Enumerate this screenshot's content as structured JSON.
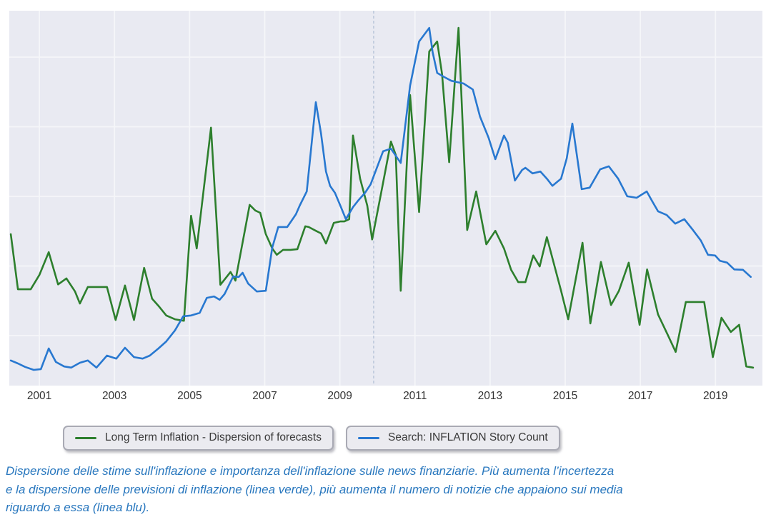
{
  "chart_data": {
    "type": "line",
    "title": "",
    "xlabel": "",
    "ylabel": "",
    "grid": true,
    "legend_position": "bottom",
    "x_axis": {
      "range": [
        2000.2,
        2020.25
      ],
      "ticks": [
        2001,
        2003,
        2005,
        2007,
        2009,
        2011,
        2013,
        2015,
        2017,
        2019
      ]
    },
    "y_axis": {
      "range": [
        0,
        100
      ],
      "labels_visible": false
    },
    "event_marker_x": 2009.9,
    "colors": {
      "plot_background": "#e9eaf2",
      "gridline": "#f5f6f9",
      "event_marker": "#b7c4d9",
      "tick_label": "#333333",
      "green_series": "#2d7f2d",
      "blue_series": "#2878d0",
      "caption_text": "#2877be"
    },
    "series": [
      {
        "name": "Long Term Inflation - Dispersion of forecasts",
        "color": "#2d7f2d",
        "points": [
          [
            2000.24,
            40.4
          ],
          [
            2000.43,
            25.7
          ],
          [
            2000.77,
            25.7
          ],
          [
            2001.0,
            29.5
          ],
          [
            2001.25,
            35.6
          ],
          [
            2001.5,
            27.0
          ],
          [
            2001.72,
            28.6
          ],
          [
            2001.95,
            25.1
          ],
          [
            2002.08,
            21.9
          ],
          [
            2002.29,
            26.3
          ],
          [
            2002.52,
            26.3
          ],
          [
            2002.8,
            26.3
          ],
          [
            2003.03,
            17.5
          ],
          [
            2003.28,
            26.7
          ],
          [
            2003.52,
            17.5
          ],
          [
            2003.79,
            31.4
          ],
          [
            2004.0,
            23.2
          ],
          [
            2004.17,
            21.3
          ],
          [
            2004.38,
            18.7
          ],
          [
            2004.61,
            17.7
          ],
          [
            2004.85,
            17.3
          ],
          [
            2005.04,
            45.3
          ],
          [
            2005.19,
            36.6
          ],
          [
            2005.57,
            68.8
          ],
          [
            2005.82,
            26.9
          ],
          [
            2006.09,
            30.3
          ],
          [
            2006.22,
            28.0
          ],
          [
            2006.6,
            48.2
          ],
          [
            2006.75,
            46.7
          ],
          [
            2006.88,
            46.1
          ],
          [
            2007.03,
            40.4
          ],
          [
            2007.2,
            36.6
          ],
          [
            2007.32,
            34.9
          ],
          [
            2007.49,
            36.2
          ],
          [
            2007.68,
            36.2
          ],
          [
            2007.87,
            36.4
          ],
          [
            2008.08,
            42.5
          ],
          [
            2008.17,
            42.3
          ],
          [
            2008.36,
            41.3
          ],
          [
            2008.5,
            40.6
          ],
          [
            2008.63,
            37.9
          ],
          [
            2008.84,
            43.4
          ],
          [
            2009.01,
            43.8
          ],
          [
            2009.12,
            43.8
          ],
          [
            2009.25,
            44.4
          ],
          [
            2009.35,
            66.7
          ],
          [
            2009.54,
            55.2
          ],
          [
            2009.73,
            48.0
          ],
          [
            2009.86,
            39.0
          ],
          [
            2010.13,
            53.0
          ],
          [
            2010.36,
            65.1
          ],
          [
            2010.49,
            61.5
          ],
          [
            2010.62,
            25.3
          ],
          [
            2010.87,
            77.5
          ],
          [
            2011.11,
            46.3
          ],
          [
            2011.38,
            89.1
          ],
          [
            2011.59,
            91.8
          ],
          [
            2011.72,
            83.2
          ],
          [
            2011.91,
            59.6
          ],
          [
            2012.16,
            95.4
          ],
          [
            2012.39,
            41.5
          ],
          [
            2012.63,
            51.8
          ],
          [
            2012.9,
            37.7
          ],
          [
            2013.14,
            41.3
          ],
          [
            2013.37,
            36.6
          ],
          [
            2013.56,
            30.9
          ],
          [
            2013.75,
            27.6
          ],
          [
            2013.94,
            27.6
          ],
          [
            2014.15,
            34.7
          ],
          [
            2014.32,
            31.8
          ],
          [
            2014.51,
            39.6
          ],
          [
            2014.89,
            25.3
          ],
          [
            2015.08,
            17.7
          ],
          [
            2015.46,
            38.1
          ],
          [
            2015.67,
            16.6
          ],
          [
            2015.95,
            33.0
          ],
          [
            2016.22,
            21.5
          ],
          [
            2016.43,
            25.3
          ],
          [
            2016.69,
            32.8
          ],
          [
            2016.98,
            16.2
          ],
          [
            2017.18,
            31.0
          ],
          [
            2017.47,
            19.0
          ],
          [
            2017.74,
            13.3
          ],
          [
            2017.94,
            9.0
          ],
          [
            2018.21,
            22.3
          ],
          [
            2018.46,
            22.3
          ],
          [
            2018.7,
            22.3
          ],
          [
            2018.93,
            7.6
          ],
          [
            2019.16,
            18.1
          ],
          [
            2019.41,
            14.3
          ],
          [
            2019.63,
            16.2
          ],
          [
            2019.82,
            5.1
          ],
          [
            2020.0,
            4.8
          ]
        ]
      },
      {
        "name": "Search: INFLATION Story Count",
        "color": "#2878d0",
        "points": [
          [
            2000.24,
            6.7
          ],
          [
            2000.43,
            5.9
          ],
          [
            2000.62,
            5.0
          ],
          [
            2000.85,
            4.2
          ],
          [
            2001.04,
            4.4
          ],
          [
            2001.25,
            9.9
          ],
          [
            2001.44,
            6.3
          ],
          [
            2001.66,
            5.1
          ],
          [
            2001.85,
            4.8
          ],
          [
            2002.08,
            6.1
          ],
          [
            2002.29,
            6.7
          ],
          [
            2002.52,
            4.8
          ],
          [
            2002.8,
            8.0
          ],
          [
            2003.05,
            7.2
          ],
          [
            2003.28,
            10.1
          ],
          [
            2003.52,
            7.6
          ],
          [
            2003.75,
            7.2
          ],
          [
            2003.94,
            8.0
          ],
          [
            2004.17,
            9.9
          ],
          [
            2004.38,
            11.8
          ],
          [
            2004.61,
            14.7
          ],
          [
            2004.83,
            18.5
          ],
          [
            2005.04,
            18.7
          ],
          [
            2005.27,
            19.4
          ],
          [
            2005.46,
            23.4
          ],
          [
            2005.65,
            23.8
          ],
          [
            2005.8,
            22.9
          ],
          [
            2005.93,
            24.4
          ],
          [
            2006.16,
            29.1
          ],
          [
            2006.31,
            29.0
          ],
          [
            2006.41,
            30.1
          ],
          [
            2006.56,
            27.2
          ],
          [
            2006.79,
            25.1
          ],
          [
            2007.03,
            25.3
          ],
          [
            2007.2,
            36.8
          ],
          [
            2007.36,
            42.3
          ],
          [
            2007.6,
            42.3
          ],
          [
            2007.83,
            45.7
          ],
          [
            2007.93,
            48.0
          ],
          [
            2008.12,
            51.8
          ],
          [
            2008.36,
            75.6
          ],
          [
            2008.5,
            67.2
          ],
          [
            2008.63,
            57.1
          ],
          [
            2008.74,
            53.3
          ],
          [
            2008.87,
            51.4
          ],
          [
            2009.03,
            47.6
          ],
          [
            2009.16,
            44.4
          ],
          [
            2009.35,
            47.6
          ],
          [
            2009.5,
            49.5
          ],
          [
            2009.67,
            51.4
          ],
          [
            2009.82,
            53.7
          ],
          [
            2010.15,
            62.5
          ],
          [
            2010.36,
            63.2
          ],
          [
            2010.62,
            59.4
          ],
          [
            2010.87,
            80.0
          ],
          [
            2011.11,
            91.8
          ],
          [
            2011.38,
            95.4
          ],
          [
            2011.47,
            89.0
          ],
          [
            2011.59,
            83.4
          ],
          [
            2011.78,
            82.3
          ],
          [
            2011.97,
            81.3
          ],
          [
            2012.29,
            80.6
          ],
          [
            2012.54,
            79.0
          ],
          [
            2012.73,
            71.8
          ],
          [
            2012.96,
            66.1
          ],
          [
            2013.14,
            60.4
          ],
          [
            2013.37,
            66.7
          ],
          [
            2013.47,
            64.8
          ],
          [
            2013.66,
            54.7
          ],
          [
            2013.85,
            57.5
          ],
          [
            2013.94,
            58.1
          ],
          [
            2014.13,
            56.6
          ],
          [
            2014.34,
            57.1
          ],
          [
            2014.51,
            55.2
          ],
          [
            2014.66,
            53.3
          ],
          [
            2014.89,
            55.2
          ],
          [
            2015.04,
            60.6
          ],
          [
            2015.19,
            69.9
          ],
          [
            2015.44,
            52.4
          ],
          [
            2015.65,
            52.8
          ],
          [
            2015.93,
            57.7
          ],
          [
            2016.16,
            58.5
          ],
          [
            2016.41,
            55.2
          ],
          [
            2016.65,
            50.5
          ],
          [
            2016.9,
            50.1
          ],
          [
            2017.17,
            51.8
          ],
          [
            2017.32,
            49.1
          ],
          [
            2017.47,
            46.5
          ],
          [
            2017.7,
            45.5
          ],
          [
            2017.93,
            43.2
          ],
          [
            2018.17,
            44.4
          ],
          [
            2018.4,
            41.5
          ],
          [
            2018.61,
            38.7
          ],
          [
            2018.8,
            34.9
          ],
          [
            2018.99,
            34.7
          ],
          [
            2019.12,
            33.3
          ],
          [
            2019.31,
            32.8
          ],
          [
            2019.5,
            31.0
          ],
          [
            2019.73,
            30.9
          ],
          [
            2019.94,
            29.0
          ]
        ]
      }
    ]
  },
  "legend": {
    "items": [
      {
        "label": "Long Term Inflation - Dispersion of forecasts",
        "color": "#2d7f2d"
      },
      {
        "label": "Search: INFLATION Story Count",
        "color": "#2878d0"
      }
    ]
  },
  "caption": {
    "lines": [
      "Dispersione delle stime sull'inflazione e importanza dell'inflazione sulle news finanziarie. Più aumenta l’incertezza",
      "e la dispersione delle previsioni di inflazione (linea verde), più aumenta il numero di notizie che appaiono sui media",
      "riguardo a essa (linea blu)."
    ]
  }
}
